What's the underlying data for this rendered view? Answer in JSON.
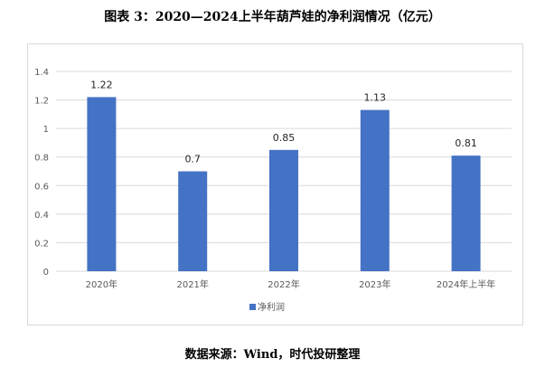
{
  "title": "图表 3：2020—2024上半年葫芦娃的净利润情况（亿元）",
  "source": "数据来源：Wind，时代投研整理",
  "colors": {
    "bar": "#4472C4",
    "grid": "#d9d9d9",
    "axis_text": "#595959"
  },
  "chart_data": {
    "type": "bar",
    "categories": [
      "2020年",
      "2021年",
      "2022年",
      "2023年",
      "2024年上半年"
    ],
    "series": [
      {
        "name": "净利润",
        "values": [
          1.22,
          0.7,
          0.85,
          1.13,
          0.81
        ]
      }
    ],
    "data_labels": [
      "1.22",
      "0.7",
      "0.85",
      "1.13",
      "0.81"
    ],
    "ylim": [
      0,
      1.4
    ],
    "yticks": [
      "0",
      "0.2",
      "0.4",
      "0.6",
      "0.8",
      "1",
      "1.2",
      "1.4"
    ],
    "grid": true,
    "legend_position": "bottom"
  }
}
